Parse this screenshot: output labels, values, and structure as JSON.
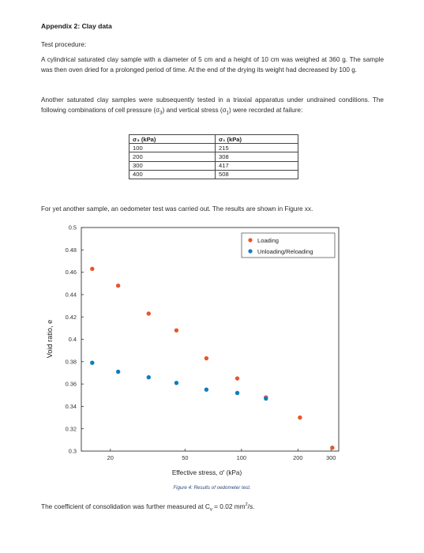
{
  "appendix": {
    "heading": "Appendix 2: Clay data",
    "procedure_label": "Test procedure:",
    "para1": "A cylindrical saturated clay sample with a diameter of 5 cm and a height of 10 cm was weighed at 360 g. The sample was then oven dried for a prolonged period of time. At the end of the drying its weight had decreased by 100 g.",
    "para2_a": "Another saturated clay samples were subsequently tested in a triaxial apparatus under undrained conditions. The following combinations of cell pressure (",
    "para2_sym3": "σ",
    "para2_sub3": "3",
    "para2_b": ") and vertical stress (",
    "para2_sym1": "σ",
    "para2_sub1": "1",
    "para2_c": ") were recorded at failure:"
  },
  "triaxial_table": {
    "headers": [
      "σ₃ (kPa)",
      "σ₁ (kPa)"
    ],
    "rows": [
      [
        "100",
        "215"
      ],
      [
        "200",
        "308"
      ],
      [
        "300",
        "417"
      ],
      [
        "400",
        "508"
      ]
    ]
  },
  "oedometer_intro": "For yet another sample, an oedometer test was carried out. The results are shown in Figure xx.",
  "chart_data": {
    "type": "scatter",
    "xscale": "log",
    "xlabel": "Effective stress, σ' (kPa)",
    "ylabel": "Void ratio, e",
    "xlim": [
      14,
      330
    ],
    "ylim": [
      0.3,
      0.5
    ],
    "x_ticks": [
      20,
      50,
      100,
      200,
      300
    ],
    "x_tick_labels": [
      "20",
      "50",
      "100",
      "200",
      "300"
    ],
    "y_ticks": [
      0.3,
      0.32,
      0.34,
      0.36,
      0.38,
      0.4,
      0.42,
      0.44,
      0.46,
      0.48,
      0.5
    ],
    "y_tick_labels": [
      "0.3",
      "0.32",
      "0.34",
      "0.36",
      "0.38",
      "0.4",
      "0.42",
      "0.44",
      "0.46",
      "0.48",
      "0.5"
    ],
    "grid": false,
    "legend_position": "top-right",
    "series": [
      {
        "name": "Loading",
        "color": "#E8562B",
        "points": [
          [
            16,
            0.463
          ],
          [
            22,
            0.448
          ],
          [
            32,
            0.423
          ],
          [
            45,
            0.408
          ],
          [
            65,
            0.383
          ],
          [
            95,
            0.365
          ],
          [
            135,
            0.348
          ],
          [
            205,
            0.33
          ],
          [
            305,
            0.303
          ]
        ]
      },
      {
        "name": "Unloading/Reloading",
        "color": "#0C7EC0",
        "points": [
          [
            16,
            0.379
          ],
          [
            22,
            0.371
          ],
          [
            32,
            0.366
          ],
          [
            45,
            0.361
          ],
          [
            65,
            0.355
          ],
          [
            95,
            0.352
          ],
          [
            135,
            0.347
          ]
        ]
      }
    ]
  },
  "caption": "Figure 4: Results of oedometer test.",
  "closing": {
    "before": "The coefficient of consolidation was further measured at C",
    "sub": "v",
    "after": " = 0.02 mm",
    "sup": "2",
    "end": "/s."
  }
}
